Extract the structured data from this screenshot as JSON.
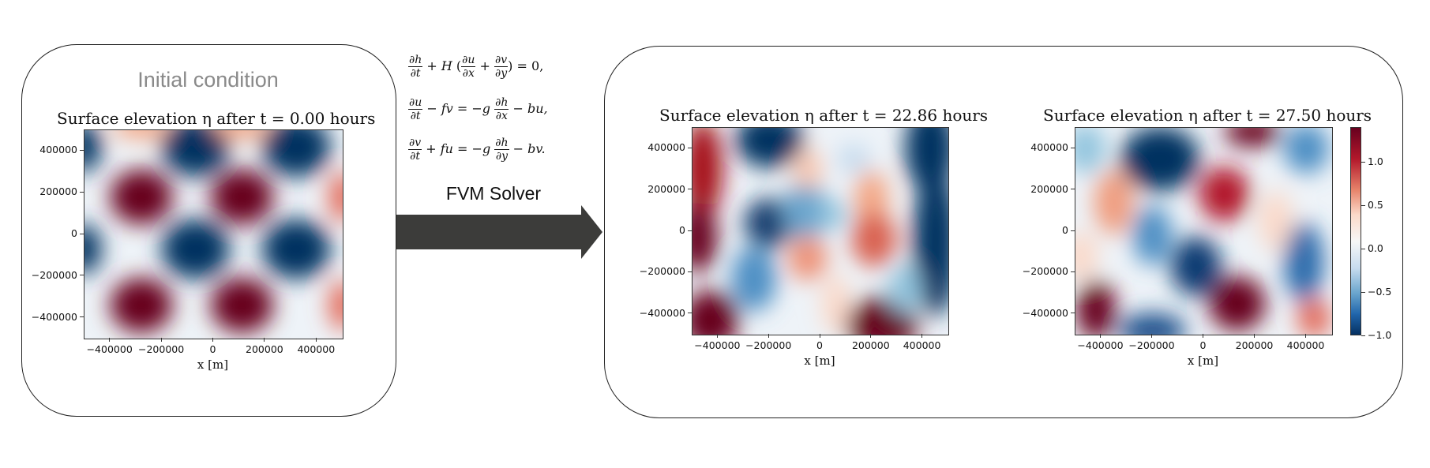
{
  "initial_title": "Initial condition",
  "solver_label": "FVM Solver",
  "equations": {
    "eq1": [
      "∂h",
      "∂t",
      "+ H",
      "∂u",
      "∂x",
      "+",
      "∂v",
      "∂y",
      "= 0,"
    ],
    "eq2": [
      "∂u",
      "∂t",
      "− fv = −g",
      "∂h",
      "∂x",
      "− bu,"
    ],
    "eq3": [
      "∂v",
      "∂t",
      "+ fu = −g",
      "∂h",
      "∂y",
      "− bv."
    ]
  },
  "colors": {
    "positive": "#67001f",
    "negative": "#053061",
    "neutral": "#f7f7f7",
    "arrow": "#3c3c3a"
  },
  "chart_data": [
    {
      "type": "heatmap",
      "title": "Surface elevation η after t = 0.00 hours",
      "xlabel": "x [m]",
      "ylabel": "",
      "xlim": [
        -500000,
        500000
      ],
      "ylim": [
        -500000,
        500000
      ],
      "xticks": [
        "−400000",
        "−200000",
        "0",
        "200000",
        "400000"
      ],
      "yticks": [
        "400000",
        "200000",
        "0",
        "−200000",
        "−400000"
      ],
      "colormap": "RdBu_r",
      "pattern": "checkerboard of alternating positive and negative blobs"
    },
    {
      "type": "heatmap",
      "title": "Surface elevation η after t = 22.86 hours",
      "xlabel": "x [m]",
      "ylabel": "",
      "xlim": [
        -500000,
        500000
      ],
      "ylim": [
        -500000,
        500000
      ],
      "xticks": [
        "−400000",
        "−200000",
        "0",
        "200000",
        "400000"
      ],
      "yticks": [
        "400000",
        "200000",
        "0",
        "−200000",
        "−400000"
      ],
      "colormap": "RdBu_r"
    },
    {
      "type": "heatmap",
      "title": "Surface elevation η after t = 27.50 hours",
      "xlabel": "x [m]",
      "ylabel": "",
      "xlim": [
        -500000,
        500000
      ],
      "ylim": [
        -500000,
        500000
      ],
      "xticks": [
        "−400000",
        "−200000",
        "0",
        "200000",
        "400000"
      ],
      "yticks": [
        "400000",
        "200000",
        "0",
        "−200000",
        "−400000"
      ],
      "colormap": "RdBu_r",
      "colorbar": {
        "ticks": [
          "1.0",
          "0.5",
          "0.0",
          "−0.5",
          "−1.0"
        ],
        "range": [
          -1.0,
          1.4
        ]
      }
    }
  ]
}
